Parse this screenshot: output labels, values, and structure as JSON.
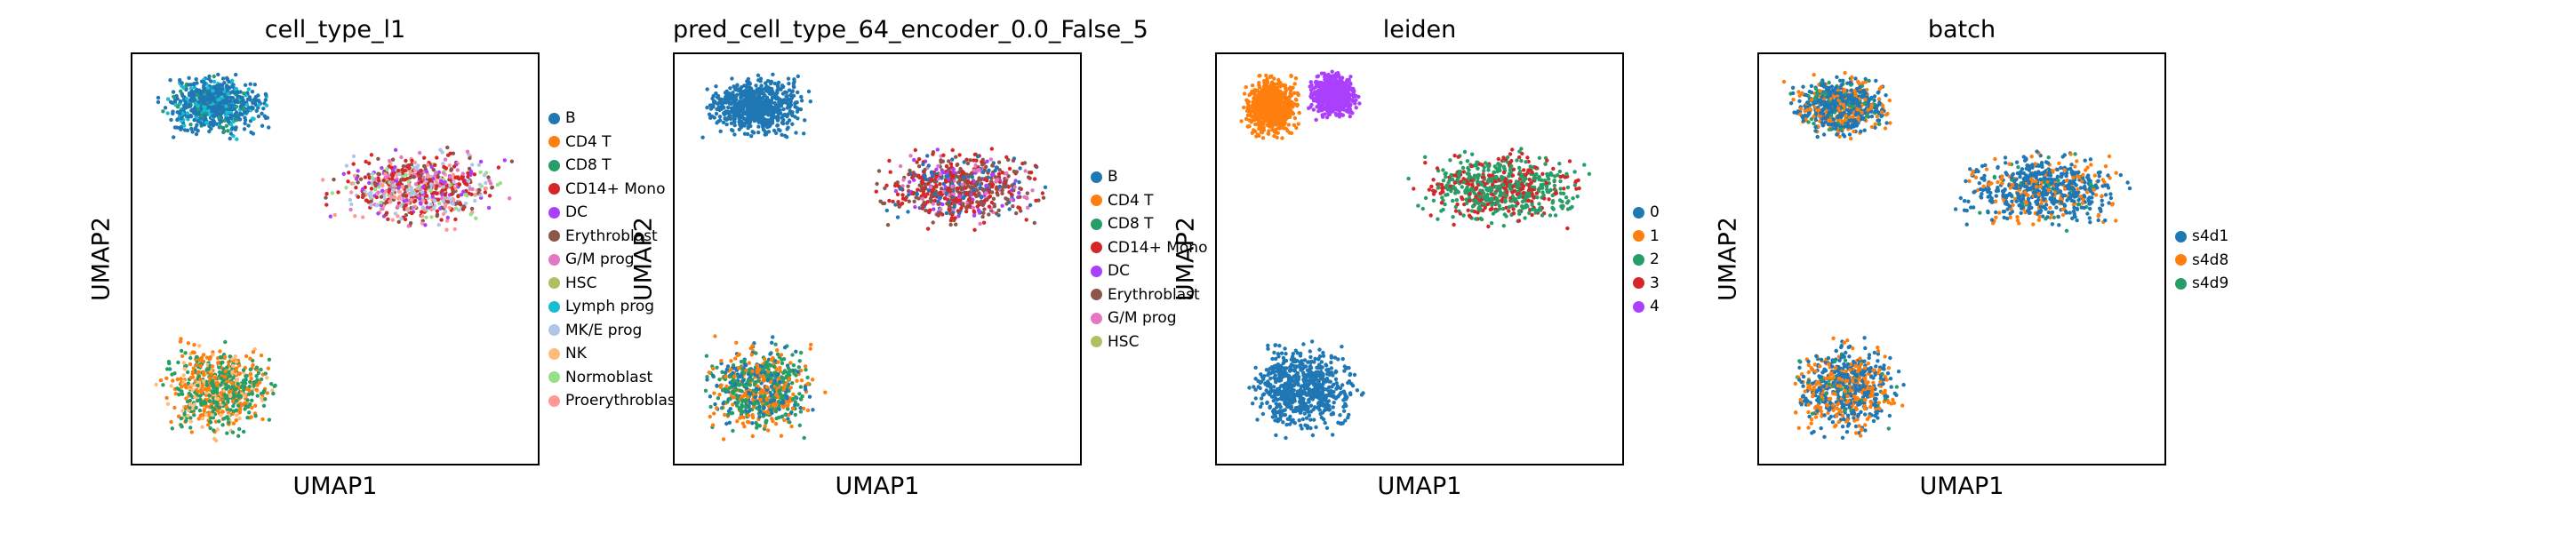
{
  "figure": {
    "panels": [
      {
        "title": "cell_type_l1",
        "xlabel": "UMAP1",
        "ylabel": "UMAP2",
        "legend": [
          {
            "label": "B",
            "color": "#1f77b4"
          },
          {
            "label": "CD4 T",
            "color": "#ff7f0e"
          },
          {
            "label": "CD8 T",
            "color": "#279e68"
          },
          {
            "label": "CD14+ Mono",
            "color": "#d62728"
          },
          {
            "label": "DC",
            "color": "#aa40fc"
          },
          {
            "label": "Erythroblast",
            "color": "#8c564b"
          },
          {
            "label": "G/M prog",
            "color": "#e377c2"
          },
          {
            "label": "HSC",
            "color": "#b5bd61"
          },
          {
            "label": "Lymph prog",
            "color": "#17becf"
          },
          {
            "label": "MK/E prog",
            "color": "#aec7e8"
          },
          {
            "label": "NK",
            "color": "#ffbb78"
          },
          {
            "label": "Normoblast",
            "color": "#98df8a"
          },
          {
            "label": "Proerythroblast",
            "color": "#ff9896"
          }
        ]
      },
      {
        "title": "pred_cell_type_64_encoder_0.0_False_5",
        "xlabel": "UMAP1",
        "ylabel": "UMAP2",
        "legend": [
          {
            "label": "B",
            "color": "#1f77b4"
          },
          {
            "label": "CD4 T",
            "color": "#ff7f0e"
          },
          {
            "label": "CD8 T",
            "color": "#279e68"
          },
          {
            "label": "CD14+ Mono",
            "color": "#d62728"
          },
          {
            "label": "DC",
            "color": "#aa40fc"
          },
          {
            "label": "Erythroblast",
            "color": "#8c564b"
          },
          {
            "label": "G/M prog",
            "color": "#e377c2"
          },
          {
            "label": "HSC",
            "color": "#b5bd61"
          }
        ]
      },
      {
        "title": "leiden",
        "xlabel": "UMAP1",
        "ylabel": "UMAP2",
        "legend": [
          {
            "label": "0",
            "color": "#1f77b4"
          },
          {
            "label": "1",
            "color": "#ff7f0e"
          },
          {
            "label": "2",
            "color": "#279e68"
          },
          {
            "label": "3",
            "color": "#d62728"
          },
          {
            "label": "4",
            "color": "#aa40fc"
          }
        ]
      },
      {
        "title": "batch",
        "xlabel": "UMAP1",
        "ylabel": "UMAP2",
        "legend": [
          {
            "label": "s4d1",
            "color": "#1f77b4"
          },
          {
            "label": "s4d8",
            "color": "#ff7f0e"
          },
          {
            "label": "s4d9",
            "color": "#279e68"
          }
        ]
      }
    ]
  },
  "chart_data": [
    {
      "type": "scatter",
      "title": "cell_type_l1",
      "xlabel": "UMAP1",
      "ylabel": "UMAP2",
      "legend_position": "right",
      "clusters": [
        {
          "name": "top-left",
          "x": [
            0.05,
            0.36
          ],
          "y": [
            0.78,
            0.96
          ],
          "mix": {
            "B": 0.75,
            "Lymph prog": 0.2,
            "CD8 T": 0.05
          }
        },
        {
          "name": "middle-arc",
          "x": [
            0.45,
            0.95
          ],
          "y": [
            0.56,
            0.78
          ],
          "mix": {
            "CD14+ Mono": 0.25,
            "DC": 0.1,
            "Erythroblast": 0.15,
            "MK/E prog": 0.15,
            "Proerythroblast": 0.15,
            "Normoblast": 0.1,
            "G/M prog": 0.1
          }
        },
        {
          "name": "bottom-left",
          "x": [
            0.05,
            0.38
          ],
          "y": [
            0.05,
            0.32
          ],
          "mix": {
            "CD4 T": 0.35,
            "CD8 T": 0.45,
            "NK": 0.2
          }
        }
      ]
    },
    {
      "type": "scatter",
      "title": "pred_cell_type_64_encoder_0.0_False_5",
      "xlabel": "UMAP1",
      "ylabel": "UMAP2",
      "legend_position": "right",
      "clusters": [
        {
          "name": "top-left",
          "x": [
            0.05,
            0.36
          ],
          "y": [
            0.78,
            0.96
          ],
          "mix": {
            "B": 0.85,
            "NK": 0.15
          }
        },
        {
          "name": "middle-arc",
          "x": [
            0.45,
            0.95
          ],
          "y": [
            0.56,
            0.78
          ],
          "mix": {
            "CD14+ Mono": 0.35,
            "DC": 0.1,
            "Erythroblast": 0.3,
            "Normoblast": 0.15,
            "G/M prog": 0.1
          }
        },
        {
          "name": "bottom-left",
          "x": [
            0.05,
            0.38
          ],
          "y": [
            0.05,
            0.32
          ],
          "mix": {
            "CD4 T": 0.35,
            "CD8 T": 0.45,
            "Proerythroblast": 0.2
          }
        }
      ]
    },
    {
      "type": "scatter",
      "title": "leiden",
      "xlabel": "UMAP1",
      "ylabel": "UMAP2",
      "legend_position": "right",
      "clusters": [
        {
          "name": "top-left-a",
          "x": [
            0.05,
            0.22
          ],
          "y": [
            0.78,
            0.96
          ],
          "mix": {
            "1": 1.0
          }
        },
        {
          "name": "top-left-b",
          "x": [
            0.22,
            0.36
          ],
          "y": [
            0.83,
            0.96
          ],
          "mix": {
            "4": 1.0
          }
        },
        {
          "name": "middle-arc",
          "x": [
            0.45,
            0.95
          ],
          "y": [
            0.56,
            0.78
          ],
          "mix": {
            "3": 0.35,
            "2": 0.65
          }
        },
        {
          "name": "bottom-left",
          "x": [
            0.05,
            0.38
          ],
          "y": [
            0.05,
            0.32
          ],
          "mix": {
            "0": 1.0
          }
        }
      ]
    },
    {
      "type": "scatter",
      "title": "batch",
      "xlabel": "UMAP1",
      "ylabel": "UMAP2",
      "legend_position": "right",
      "clusters": [
        {
          "name": "top-left",
          "x": [
            0.05,
            0.36
          ],
          "y": [
            0.78,
            0.96
          ],
          "mix": {
            "s4d1": 0.6,
            "s4d8": 0.3,
            "s4d9": 0.1
          }
        },
        {
          "name": "middle-arc",
          "x": [
            0.45,
            0.95
          ],
          "y": [
            0.56,
            0.78
          ],
          "mix": {
            "s4d1": 0.7,
            "s4d8": 0.25,
            "s4d9": 0.05
          }
        },
        {
          "name": "bottom-left",
          "x": [
            0.05,
            0.38
          ],
          "y": [
            0.05,
            0.32
          ],
          "mix": {
            "s4d1": 0.55,
            "s4d8": 0.4,
            "s4d9": 0.05
          }
        }
      ]
    }
  ]
}
